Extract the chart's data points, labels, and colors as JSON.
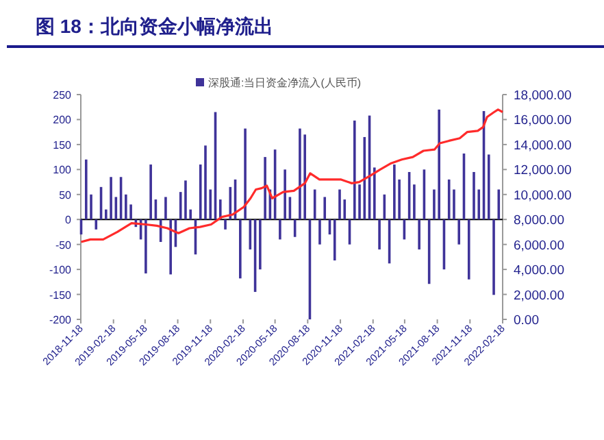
{
  "chart_data": {
    "type": "bar",
    "title": "图 18：北向资金小幅净流出",
    "xlim": [
      "2018-11-18",
      "2022-02-18"
    ],
    "xticks": [
      "2018-11-18",
      "2019-02-18",
      "2019-05-18",
      "2019-08-18",
      "2019-11-18",
      "2020-02-18",
      "2020-05-18",
      "2020-08-18",
      "2020-11-18",
      "2021-02-18",
      "2021-05-18",
      "2021-08-18",
      "2021-11-18",
      "2022-02-18"
    ],
    "ylim": [
      -200,
      250
    ],
    "yticks": [
      -200,
      -150,
      -100,
      -50,
      0,
      50,
      100,
      150,
      200,
      250
    ],
    "y2lim": [
      0,
      18000
    ],
    "y2ticks": [
      {
        "value": 0,
        "label": "0.00"
      },
      {
        "value": 2000,
        "label": "2,000.00"
      },
      {
        "value": 4000,
        "label": "4,000.00"
      },
      {
        "value": 6000,
        "label": "6,000.00"
      },
      {
        "value": 8000,
        "label": "8,000.00"
      },
      {
        "value": 10000,
        "label": "10,000.00"
      },
      {
        "value": 12000,
        "label": "12,000.00"
      },
      {
        "value": 14000,
        "label": "14,000.00"
      },
      {
        "value": 16000,
        "label": "16,000.00"
      },
      {
        "value": 18000,
        "label": "18,000.00"
      }
    ],
    "legend": "top",
    "series": [
      {
        "name": "深股通:当日资金净流入(人民币)",
        "color": "#3f3399",
        "x": [
          "2018-11-19",
          "2018-12-03",
          "2018-12-17",
          "2018-12-31",
          "2019-01-14",
          "2019-01-28",
          "2019-02-11",
          "2019-02-25",
          "2019-03-11",
          "2019-03-25",
          "2019-04-08",
          "2019-04-22",
          "2019-05-06",
          "2019-05-20",
          "2019-06-03",
          "2019-06-17",
          "2019-07-01",
          "2019-07-15",
          "2019-07-29",
          "2019-08-12",
          "2019-08-26",
          "2019-09-09",
          "2019-09-23",
          "2019-10-07",
          "2019-10-21",
          "2019-11-04",
          "2019-11-18",
          "2019-12-02",
          "2019-12-16",
          "2019-12-30",
          "2020-01-13",
          "2020-01-27",
          "2020-02-10",
          "2020-02-24",
          "2020-03-09",
          "2020-03-23",
          "2020-04-06",
          "2020-04-20",
          "2020-05-04",
          "2020-05-18",
          "2020-06-01",
          "2020-06-15",
          "2020-06-29",
          "2020-07-13",
          "2020-07-27",
          "2020-08-10",
          "2020-08-24",
          "2020-09-07",
          "2020-09-21",
          "2020-10-05",
          "2020-10-19",
          "2020-11-02",
          "2020-11-16",
          "2020-11-30",
          "2020-12-14",
          "2020-12-28",
          "2021-01-11",
          "2021-01-25",
          "2021-02-08",
          "2021-02-22",
          "2021-03-08",
          "2021-03-22",
          "2021-04-05",
          "2021-04-19",
          "2021-05-03",
          "2021-05-17",
          "2021-05-31",
          "2021-06-14",
          "2021-06-28",
          "2021-07-12",
          "2021-07-26",
          "2021-08-09",
          "2021-08-23",
          "2021-09-06",
          "2021-09-20",
          "2021-10-04",
          "2021-10-18",
          "2021-11-01",
          "2021-11-15",
          "2021-11-29",
          "2021-12-13",
          "2021-12-27",
          "2022-01-10",
          "2022-01-24",
          "2022-02-07"
        ],
        "values": [
          -30,
          120,
          50,
          -20,
          65,
          20,
          85,
          45,
          85,
          50,
          30,
          -15,
          -40,
          -108,
          110,
          40,
          -45,
          45,
          -110,
          -55,
          55,
          78,
          20,
          -70,
          110,
          148,
          60,
          215,
          40,
          -20,
          65,
          80,
          -118,
          182,
          -60,
          -145,
          -100,
          125,
          60,
          140,
          -40,
          100,
          45,
          -35,
          182,
          170,
          -200,
          60,
          -50,
          45,
          -30,
          -82,
          60,
          40,
          -50,
          198,
          70,
          165,
          208,
          104,
          -60,
          50,
          -88,
          110,
          80,
          -40,
          95,
          70,
          -60,
          100,
          -129,
          60,
          220,
          -100,
          80,
          60,
          -50,
          132,
          -120,
          95,
          60,
          217,
          130,
          -151,
          60
        ]
      },
      {
        "type": "line",
        "axis": "y2",
        "color": "#ff2b2b",
        "x": [
          "2018-11-19",
          "2018-12-15",
          "2019-01-20",
          "2019-03-01",
          "2019-04-10",
          "2019-05-20",
          "2019-06-20",
          "2019-07-20",
          "2019-08-20",
          "2019-09-20",
          "2019-10-20",
          "2019-11-20",
          "2019-12-20",
          "2020-01-20",
          "2020-02-20",
          "2020-03-10",
          "2020-03-25",
          "2020-04-10",
          "2020-04-25",
          "2020-05-10",
          "2020-06-10",
          "2020-07-10",
          "2020-08-10",
          "2020-08-25",
          "2020-09-20",
          "2020-10-20",
          "2020-11-20",
          "2020-12-20",
          "2021-01-10",
          "2021-02-10",
          "2021-03-10",
          "2021-04-10",
          "2021-05-10",
          "2021-06-10",
          "2021-07-10",
          "2021-08-10",
          "2021-08-25",
          "2021-09-20",
          "2021-10-20",
          "2021-11-10",
          "2021-12-10",
          "2021-12-25",
          "2022-01-05",
          "2022-01-25",
          "2022-02-05",
          "2022-02-18"
        ],
        "values": [
          6200,
          6400,
          6400,
          7000,
          7700,
          7600,
          7500,
          7300,
          6900,
          7300,
          7400,
          7600,
          8200,
          8400,
          9000,
          9700,
          10400,
          10500,
          10700,
          9700,
          10200,
          10300,
          10900,
          11700,
          11200,
          11200,
          11200,
          10900,
          11000,
          11500,
          12000,
          12500,
          12800,
          13000,
          13500,
          13600,
          14100,
          14300,
          14500,
          15000,
          15100,
          15400,
          16200,
          16600,
          16800,
          16600
        ]
      }
    ]
  }
}
